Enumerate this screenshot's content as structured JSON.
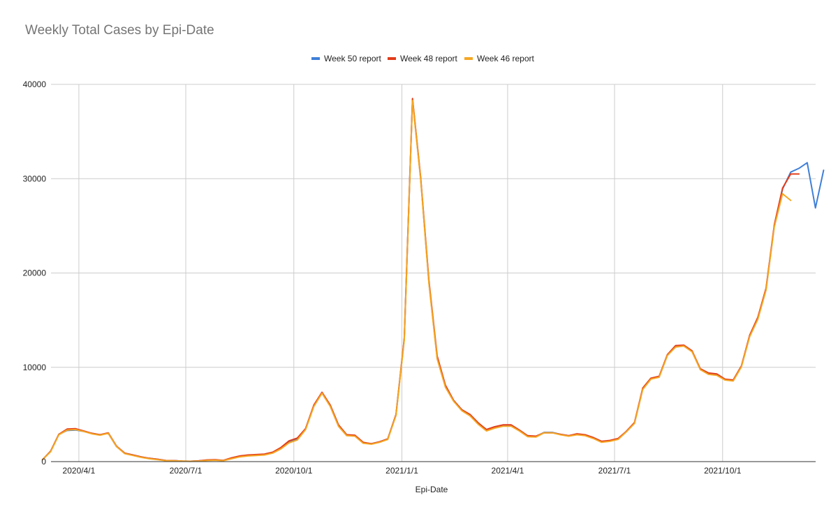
{
  "chart_data": {
    "type": "line",
    "title": "Weekly Total Cases by Epi-Date",
    "xlabel": "Epi-Date",
    "ylabel": "",
    "ylim": [
      0,
      40000
    ],
    "yticks": [
      0,
      10000,
      20000,
      30000,
      40000
    ],
    "x_start": "2020/3/1",
    "x_end": "2021/12/19",
    "xticks": [
      "2020/4/1",
      "2020/7/1",
      "2020/10/1",
      "2021/1/1",
      "2021/4/1",
      "2021/7/1",
      "2021/10/1"
    ],
    "grid": true,
    "legend_position": "top",
    "series": [
      {
        "name": "Week 50 report",
        "color": "#3f7fd8",
        "points": [
          [
            "2020/3/1",
            200
          ],
          [
            "2020/3/8",
            1100
          ],
          [
            "2020/3/15",
            2900
          ],
          [
            "2020/3/22",
            3300
          ],
          [
            "2020/3/29",
            3350
          ],
          [
            "2020/4/5",
            3200
          ],
          [
            "2020/4/12",
            3000
          ],
          [
            "2020/4/19",
            2850
          ],
          [
            "2020/4/26",
            3000
          ],
          [
            "2020/5/3",
            1600
          ],
          [
            "2020/5/10",
            900
          ],
          [
            "2020/5/17",
            700
          ],
          [
            "2020/5/24",
            500
          ],
          [
            "2020/5/31",
            350
          ],
          [
            "2020/6/7",
            250
          ],
          [
            "2020/6/14",
            120
          ],
          [
            "2020/6/21",
            100
          ],
          [
            "2020/6/28",
            60
          ],
          [
            "2020/7/5",
            40
          ],
          [
            "2020/7/12",
            80
          ],
          [
            "2020/7/19",
            150
          ],
          [
            "2020/7/26",
            180
          ],
          [
            "2020/8/2",
            120
          ],
          [
            "2020/8/9",
            350
          ],
          [
            "2020/8/16",
            550
          ],
          [
            "2020/8/23",
            650
          ],
          [
            "2020/8/30",
            700
          ],
          [
            "2020/9/6",
            750
          ],
          [
            "2020/9/13",
            950
          ],
          [
            "2020/9/20",
            1400
          ],
          [
            "2020/9/27",
            2100
          ],
          [
            "2020/10/4",
            2400
          ],
          [
            "2020/10/11",
            3500
          ],
          [
            "2020/10/18",
            5900
          ],
          [
            "2020/10/25",
            7300
          ],
          [
            "2020/11/1",
            5900
          ],
          [
            "2020/11/8",
            3800
          ],
          [
            "2020/11/15",
            2800
          ],
          [
            "2020/11/22",
            2750
          ],
          [
            "2020/11/29",
            2000
          ],
          [
            "2020/12/6",
            1900
          ],
          [
            "2020/12/13",
            2100
          ],
          [
            "2020/12/20",
            2400
          ],
          [
            "2020/12/27",
            5000
          ],
          [
            "2021/1/3",
            13000
          ],
          [
            "2021/1/10",
            38400
          ],
          [
            "2021/1/17",
            30000
          ],
          [
            "2021/1/24",
            19000
          ],
          [
            "2021/1/31",
            11000
          ],
          [
            "2021/2/7",
            8000
          ],
          [
            "2021/2/14",
            6500
          ],
          [
            "2021/2/21",
            5500
          ],
          [
            "2021/2/28",
            4900
          ],
          [
            "2021/3/7",
            4000
          ],
          [
            "2021/3/14",
            3300
          ],
          [
            "2021/3/21",
            3600
          ],
          [
            "2021/3/28",
            3800
          ],
          [
            "2021/4/4",
            3800
          ],
          [
            "2021/4/11",
            3300
          ],
          [
            "2021/4/18",
            2700
          ],
          [
            "2021/4/25",
            2650
          ],
          [
            "2021/5/2",
            3100
          ],
          [
            "2021/5/9",
            3100
          ],
          [
            "2021/5/16",
            2900
          ],
          [
            "2021/5/23",
            2750
          ],
          [
            "2021/5/30",
            2900
          ],
          [
            "2021/6/6",
            2800
          ],
          [
            "2021/6/13",
            2500
          ],
          [
            "2021/6/20",
            2100
          ],
          [
            "2021/6/27",
            2200
          ],
          [
            "2021/7/4",
            2400
          ],
          [
            "2021/7/11",
            3200
          ],
          [
            "2021/7/18",
            4100
          ],
          [
            "2021/7/25",
            7700
          ],
          [
            "2021/8/1",
            8800
          ],
          [
            "2021/8/8",
            9000
          ],
          [
            "2021/8/15",
            11300
          ],
          [
            "2021/8/22",
            12200
          ],
          [
            "2021/8/29",
            12300
          ],
          [
            "2021/9/5",
            11700
          ],
          [
            "2021/9/12",
            9800
          ],
          [
            "2021/9/19",
            9300
          ],
          [
            "2021/9/26",
            9200
          ],
          [
            "2021/10/3",
            8700
          ],
          [
            "2021/10/10",
            8600
          ],
          [
            "2021/10/17",
            10100
          ],
          [
            "2021/10/24",
            13300
          ],
          [
            "2021/10/31",
            15200
          ],
          [
            "2021/11/7",
            18300
          ],
          [
            "2021/11/14",
            25000
          ],
          [
            "2021/11/21",
            28900
          ],
          [
            "2021/11/28",
            30700
          ],
          [
            "2021/12/5",
            31100
          ],
          [
            "2021/12/12",
            31700
          ],
          [
            "2021/12/19",
            26900
          ],
          [
            "2021/12/26",
            30900
          ]
        ]
      },
      {
        "name": "Week 48 report",
        "color": "#e23c1a",
        "points": [
          [
            "2020/3/1",
            200
          ],
          [
            "2020/3/8",
            1100
          ],
          [
            "2020/3/15",
            2900
          ],
          [
            "2020/3/22",
            3450
          ],
          [
            "2020/3/29",
            3500
          ],
          [
            "2020/4/5",
            3250
          ],
          [
            "2020/4/12",
            3000
          ],
          [
            "2020/4/19",
            2850
          ],
          [
            "2020/4/26",
            3050
          ],
          [
            "2020/5/3",
            1650
          ],
          [
            "2020/5/10",
            900
          ],
          [
            "2020/5/17",
            700
          ],
          [
            "2020/5/24",
            500
          ],
          [
            "2020/5/31",
            350
          ],
          [
            "2020/6/7",
            250
          ],
          [
            "2020/6/14",
            120
          ],
          [
            "2020/6/21",
            100
          ],
          [
            "2020/6/28",
            60
          ],
          [
            "2020/7/5",
            40
          ],
          [
            "2020/7/12",
            80
          ],
          [
            "2020/7/19",
            180
          ],
          [
            "2020/7/26",
            200
          ],
          [
            "2020/8/2",
            130
          ],
          [
            "2020/8/9",
            400
          ],
          [
            "2020/8/16",
            600
          ],
          [
            "2020/8/23",
            700
          ],
          [
            "2020/8/30",
            750
          ],
          [
            "2020/9/6",
            800
          ],
          [
            "2020/9/13",
            1000
          ],
          [
            "2020/9/20",
            1500
          ],
          [
            "2020/9/27",
            2200
          ],
          [
            "2020/10/4",
            2500
          ],
          [
            "2020/10/11",
            3500
          ],
          [
            "2020/10/18",
            6000
          ],
          [
            "2020/10/25",
            7350
          ],
          [
            "2020/11/1",
            6000
          ],
          [
            "2020/11/8",
            3900
          ],
          [
            "2020/11/15",
            2850
          ],
          [
            "2020/11/22",
            2800
          ],
          [
            "2020/11/29",
            2050
          ],
          [
            "2020/12/6",
            1900
          ],
          [
            "2020/12/13",
            2100
          ],
          [
            "2020/12/20",
            2400
          ],
          [
            "2020/12/27",
            5000
          ],
          [
            "2021/1/3",
            13100
          ],
          [
            "2021/1/10",
            38500
          ],
          [
            "2021/1/17",
            30100
          ],
          [
            "2021/1/24",
            19200
          ],
          [
            "2021/1/31",
            11200
          ],
          [
            "2021/2/7",
            8100
          ],
          [
            "2021/2/14",
            6500
          ],
          [
            "2021/2/21",
            5500
          ],
          [
            "2021/2/28",
            5000
          ],
          [
            "2021/3/7",
            4100
          ],
          [
            "2021/3/14",
            3400
          ],
          [
            "2021/3/21",
            3700
          ],
          [
            "2021/3/28",
            3900
          ],
          [
            "2021/4/4",
            3900
          ],
          [
            "2021/4/11",
            3350
          ],
          [
            "2021/4/18",
            2750
          ],
          [
            "2021/4/25",
            2700
          ],
          [
            "2021/5/2",
            3050
          ],
          [
            "2021/5/9",
            3050
          ],
          [
            "2021/5/16",
            2900
          ],
          [
            "2021/5/23",
            2750
          ],
          [
            "2021/5/30",
            2950
          ],
          [
            "2021/6/6",
            2850
          ],
          [
            "2021/6/13",
            2550
          ],
          [
            "2021/6/20",
            2150
          ],
          [
            "2021/6/27",
            2250
          ],
          [
            "2021/7/4",
            2450
          ],
          [
            "2021/7/11",
            3200
          ],
          [
            "2021/7/18",
            4150
          ],
          [
            "2021/7/25",
            7800
          ],
          [
            "2021/8/1",
            8850
          ],
          [
            "2021/8/8",
            9050
          ],
          [
            "2021/8/15",
            11350
          ],
          [
            "2021/8/22",
            12300
          ],
          [
            "2021/8/29",
            12350
          ],
          [
            "2021/9/5",
            11750
          ],
          [
            "2021/9/12",
            9850
          ],
          [
            "2021/9/19",
            9400
          ],
          [
            "2021/9/26",
            9300
          ],
          [
            "2021/10/3",
            8750
          ],
          [
            "2021/10/10",
            8650
          ],
          [
            "2021/10/17",
            10150
          ],
          [
            "2021/10/24",
            13400
          ],
          [
            "2021/10/31",
            15300
          ],
          [
            "2021/11/7",
            18400
          ],
          [
            "2021/11/14",
            25100
          ],
          [
            "2021/11/21",
            29000
          ],
          [
            "2021/11/28",
            30500
          ],
          [
            "2021/12/5",
            30500
          ]
        ]
      },
      {
        "name": "Week 46 report",
        "color": "#f5a623",
        "points": [
          [
            "2020/3/1",
            200
          ],
          [
            "2020/3/8",
            1050
          ],
          [
            "2020/3/15",
            2850
          ],
          [
            "2020/3/22",
            3350
          ],
          [
            "2020/3/29",
            3400
          ],
          [
            "2020/4/5",
            3200
          ],
          [
            "2020/4/12",
            2950
          ],
          [
            "2020/4/19",
            2800
          ],
          [
            "2020/4/26",
            3000
          ],
          [
            "2020/5/3",
            1600
          ],
          [
            "2020/5/10",
            850
          ],
          [
            "2020/5/17",
            650
          ],
          [
            "2020/5/24",
            450
          ],
          [
            "2020/5/31",
            300
          ],
          [
            "2020/6/7",
            200
          ],
          [
            "2020/6/14",
            100
          ],
          [
            "2020/6/21",
            80
          ],
          [
            "2020/6/28",
            50
          ],
          [
            "2020/7/5",
            30
          ],
          [
            "2020/7/12",
            60
          ],
          [
            "2020/7/19",
            120
          ],
          [
            "2020/7/26",
            150
          ],
          [
            "2020/8/2",
            100
          ],
          [
            "2020/8/9",
            300
          ],
          [
            "2020/8/16",
            500
          ],
          [
            "2020/8/23",
            600
          ],
          [
            "2020/8/30",
            650
          ],
          [
            "2020/9/6",
            700
          ],
          [
            "2020/9/13",
            900
          ],
          [
            "2020/9/20",
            1350
          ],
          [
            "2020/9/27",
            2000
          ],
          [
            "2020/10/4",
            2300
          ],
          [
            "2020/10/11",
            3400
          ],
          [
            "2020/10/18",
            5850
          ],
          [
            "2020/10/25",
            7250
          ],
          [
            "2020/11/1",
            5850
          ],
          [
            "2020/11/8",
            3750
          ],
          [
            "2020/11/15",
            2750
          ],
          [
            "2020/11/22",
            2700
          ],
          [
            "2020/11/29",
            1950
          ],
          [
            "2020/12/6",
            1850
          ],
          [
            "2020/12/13",
            2050
          ],
          [
            "2020/12/20",
            2350
          ],
          [
            "2020/12/27",
            4900
          ],
          [
            "2021/1/3",
            12900
          ],
          [
            "2021/1/10",
            38300
          ],
          [
            "2021/1/17",
            29900
          ],
          [
            "2021/1/24",
            18900
          ],
          [
            "2021/1/31",
            10900
          ],
          [
            "2021/2/7",
            7900
          ],
          [
            "2021/2/14",
            6400
          ],
          [
            "2021/2/21",
            5400
          ],
          [
            "2021/2/28",
            4850
          ],
          [
            "2021/3/7",
            3950
          ],
          [
            "2021/3/14",
            3250
          ],
          [
            "2021/3/21",
            3550
          ],
          [
            "2021/3/28",
            3750
          ],
          [
            "2021/4/4",
            3750
          ],
          [
            "2021/4/11",
            3250
          ],
          [
            "2021/4/18",
            2650
          ],
          [
            "2021/4/25",
            2600
          ],
          [
            "2021/5/2",
            3050
          ],
          [
            "2021/5/9",
            3050
          ],
          [
            "2021/5/16",
            2850
          ],
          [
            "2021/5/23",
            2700
          ],
          [
            "2021/5/30",
            2850
          ],
          [
            "2021/6/6",
            2750
          ],
          [
            "2021/6/13",
            2450
          ],
          [
            "2021/6/20",
            2050
          ],
          [
            "2021/6/27",
            2150
          ],
          [
            "2021/7/4",
            2350
          ],
          [
            "2021/7/11",
            3150
          ],
          [
            "2021/7/18",
            4050
          ],
          [
            "2021/7/25",
            7650
          ],
          [
            "2021/8/1",
            8750
          ],
          [
            "2021/8/8",
            8950
          ],
          [
            "2021/8/15",
            11250
          ],
          [
            "2021/8/22",
            12150
          ],
          [
            "2021/8/29",
            12250
          ],
          [
            "2021/9/5",
            11650
          ],
          [
            "2021/9/12",
            9750
          ],
          [
            "2021/9/19",
            9250
          ],
          [
            "2021/9/26",
            9150
          ],
          [
            "2021/10/3",
            8650
          ],
          [
            "2021/10/10",
            8550
          ],
          [
            "2021/10/17",
            10050
          ],
          [
            "2021/10/24",
            13250
          ],
          [
            "2021/10/31",
            15100
          ],
          [
            "2021/11/7",
            18200
          ],
          [
            "2021/11/14",
            24900
          ],
          [
            "2021/11/21",
            28400
          ],
          [
            "2021/11/28",
            27700
          ]
        ]
      }
    ]
  }
}
